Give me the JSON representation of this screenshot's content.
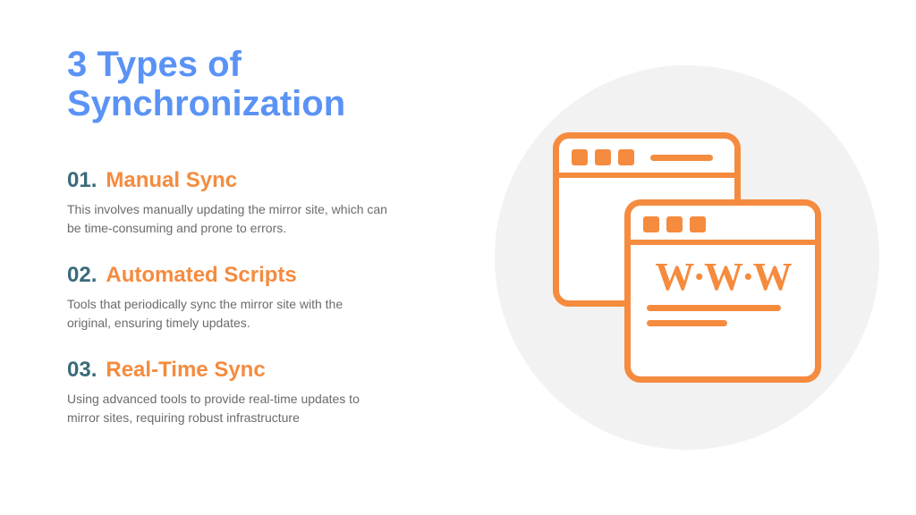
{
  "colors": {
    "blue": "#5a93f5",
    "teal": "#3a6a7a",
    "orange": "#f58b3e",
    "body": "#6b6b6b",
    "circle_bg": "#f2f2f2",
    "white": "#ffffff"
  },
  "title": "3 Types of Synchronization",
  "items": [
    {
      "num": "01.",
      "title": "Manual Sync",
      "desc": "This involves manually updating the mirror site, which can be time-consuming and prone to errors."
    },
    {
      "num": "02.",
      "title": "Automated Scripts",
      "desc": "Tools that periodically sync the mirror site with the original, ensuring timely updates."
    },
    {
      "num": "03.",
      "title": "Real-Time Sync",
      "desc": "Using advanced tools to provide real-time updates to mirror sites, requiring robust infrastructure"
    }
  ],
  "illustration": {
    "icon_color": "#f58b3e",
    "front_text": "W·W·W",
    "stroke_width": 7,
    "back_header_line_w": 70,
    "front_line1_w": 150,
    "front_line2_w": 90
  }
}
